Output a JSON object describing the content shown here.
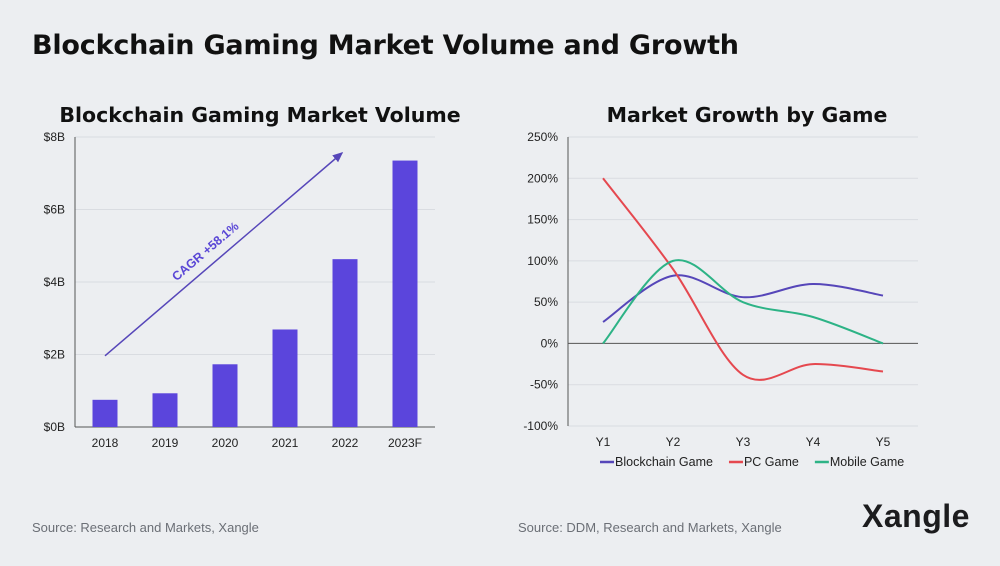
{
  "title": "Blockchain Gaming Market Volume and Growth",
  "brand": "Xangle",
  "colors": {
    "bar": "#5b45dc",
    "blockchain": "#5646b9",
    "pc": "#e5484f",
    "mobile": "#2db386"
  },
  "chart_data": [
    {
      "type": "bar",
      "title": "Blockchain Gaming Market Volume",
      "categories": [
        "2018",
        "2019",
        "2020",
        "2021",
        "2022",
        "2023F"
      ],
      "values": [
        0.75,
        0.93,
        1.73,
        2.69,
        4.63,
        7.35
      ],
      "unit": "B",
      "yticks": [
        "$0B",
        "$2B",
        "$4B",
        "$6B",
        "$8B"
      ],
      "ylim": [
        0,
        8
      ],
      "grid": true,
      "annotation": "CAGR +58.1%",
      "source": "Source: Research and Markets, Xangle"
    },
    {
      "type": "line",
      "title": "Market Growth by Game",
      "categories": [
        "Y1",
        "Y2",
        "Y3",
        "Y4",
        "Y5"
      ],
      "yticks": [
        "-100%",
        "-50%",
        "0%",
        "50%",
        "100%",
        "150%",
        "200%",
        "250%"
      ],
      "ylim": [
        -100,
        250
      ],
      "grid": true,
      "legend": "bottom",
      "series": [
        {
          "name": "Blockchain Game",
          "values": [
            26,
            82,
            56,
            72,
            58
          ]
        },
        {
          "name": "PC Game",
          "values": [
            200,
            90,
            -38,
            -25,
            -34
          ]
        },
        {
          "name": "Mobile Game",
          "values": [
            0,
            100,
            50,
            32,
            0
          ]
        }
      ],
      "source": "Source: DDM, Research and Markets, Xangle"
    }
  ]
}
